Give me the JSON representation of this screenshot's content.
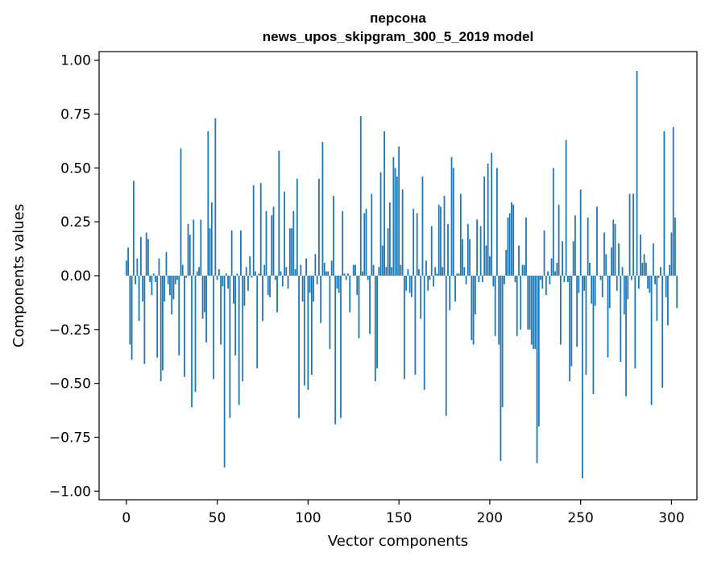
{
  "chart_data": {
    "type": "bar",
    "title_line1": "персона",
    "title_line2": "news_upos_skipgram_300_5_2019 model",
    "xlabel": "Vector components",
    "ylabel": "Components values",
    "xlim": [
      -15,
      314
    ],
    "ylim": [
      -1.04,
      1.04
    ],
    "xticks": [
      0,
      50,
      100,
      150,
      200,
      250,
      300
    ],
    "yticks": [
      1.0,
      0.75,
      0.5,
      0.25,
      0.0,
      -0.25,
      -0.5,
      -0.75,
      -1.0
    ],
    "ytick_labels": [
      "1.00",
      "0.75",
      "0.50",
      "0.25",
      "0.00",
      "−0.25",
      "−0.50",
      "−0.75",
      "−1.00"
    ],
    "bar_color": "#1f77b4",
    "values": [
      0.07,
      0.13,
      -0.32,
      -0.39,
      0.44,
      -0.04,
      0.08,
      -0.21,
      0.18,
      -0.12,
      -0.41,
      0.2,
      0.17,
      -0.03,
      -0.09,
      0.01,
      -0.03,
      -0.38,
      0.08,
      -0.49,
      -0.44,
      -0.12,
      0.11,
      -0.04,
      -0.09,
      -0.18,
      -0.11,
      -0.04,
      -0.02,
      -0.37,
      0.59,
      0.05,
      -0.47,
      -0.01,
      0.24,
      0.19,
      -0.61,
      0.26,
      -0.54,
      0.02,
      0.04,
      0.26,
      -0.2,
      -0.17,
      -0.31,
      0.67,
      0.22,
      0.34,
      -0.48,
      0.73,
      -0.02,
      0.03,
      -0.32,
      -0.05,
      -0.89,
      0.01,
      -0.06,
      -0.66,
      0.21,
      -0.13,
      -0.37,
      0.01,
      -0.6,
      0.21,
      -0.49,
      -0.14,
      0.04,
      -0.07,
      0.09,
      -0.01,
      0.42,
      0.02,
      -0.43,
      0.01,
      0.43,
      -0.21,
      0.05,
      0.3,
      -0.09,
      -0.1,
      0.28,
      0.32,
      -0.02,
      -0.17,
      0.58,
      0.02,
      -0.05,
      0.39,
      0.04,
      -0.06,
      0.22,
      0.22,
      0.3,
      0.03,
      0.45,
      -0.66,
      0.05,
      -0.12,
      -0.51,
      0.08,
      -0.53,
      -0.08,
      -0.46,
      -0.12,
      0.1,
      -0.04,
      0.45,
      -0.22,
      0.62,
      0.06,
      0.02,
      0.02,
      -0.34,
      0.07,
      0.37,
      -0.69,
      -0.06,
      -0.08,
      -0.66,
      0.3,
      0.01,
      -0.02,
      0.01,
      -0.17,
      0.0,
      0.05,
      0.05,
      -0.09,
      -0.29,
      0.74,
      0.02,
      0.29,
      0.31,
      -0.02,
      -0.27,
      0.38,
      0.05,
      -0.49,
      -0.43,
      0.04,
      0.48,
      0.14,
      0.67,
      0.04,
      0.22,
      0.34,
      0.04,
      0.55,
      0.5,
      0.46,
      0.6,
      0.05,
      0.4,
      -0.48,
      -0.07,
      0.03,
      -0.08,
      -0.1,
      0.31,
      -0.46,
      0.29,
      0.03,
      -0.2,
      0.46,
      -0.53,
      0.07,
      -0.07,
      -0.02,
      0.23,
      -0.05,
      0.04,
      0.01,
      0.33,
      0.32,
      0.04,
      0.37,
      -0.65,
      0.24,
      -0.16,
      0.55,
      0.5,
      -0.12,
      0.01,
      0.01,
      0.38,
      0.17,
      0.04,
      -0.04,
      0.24,
      0.17,
      -0.3,
      -0.32,
      -0.18,
      0.26,
      -0.03,
      0.23,
      -0.03,
      0.46,
      0.14,
      0.52,
      0.09,
      0.57,
      -0.05,
      -0.28,
      0.5,
      -0.32,
      -0.86,
      -0.61,
      -0.04,
      0.12,
      0.27,
      0.29,
      0.34,
      0.33,
      -0.03,
      -0.28,
      0.14,
      -0.25,
      0.05,
      0.05,
      0.27,
      -0.25,
      -0.25,
      -0.32,
      -0.34,
      -0.34,
      -0.87,
      -0.7,
      -0.02,
      -0.06,
      0.21,
      -0.09,
      0.02,
      -0.04,
      0.08,
      0.5,
      0.02,
      0.06,
      0.33,
      -0.32,
      0.16,
      -0.03,
      0.63,
      -0.03,
      -0.49,
      -0.42,
      0.16,
      0.28,
      -0.33,
      -0.08,
      0.4,
      -0.94,
      -0.07,
      -0.46,
      0.27,
      0.06,
      -0.13,
      -0.55,
      -0.14,
      0.32,
      0.0,
      -0.02,
      -0.1,
      0.2,
      0.1,
      -0.38,
      -0.15,
      0.13,
      0.26,
      0.24,
      -0.07,
      0.15,
      -0.4,
      0.04,
      -0.18,
      -0.56,
      -0.11,
      0.38,
      -0.02,
      0.38,
      -0.43,
      0.95,
      -0.06,
      0.19,
      0.06,
      0.1,
      0.06,
      -0.06,
      -0.08,
      -0.6,
      0.15,
      -0.04,
      -0.21,
      -0.01,
      0.04,
      -0.52,
      0.67,
      -0.1,
      -0.23,
      0.05,
      0.2,
      0.69,
      0.27,
      -0.15
    ]
  }
}
